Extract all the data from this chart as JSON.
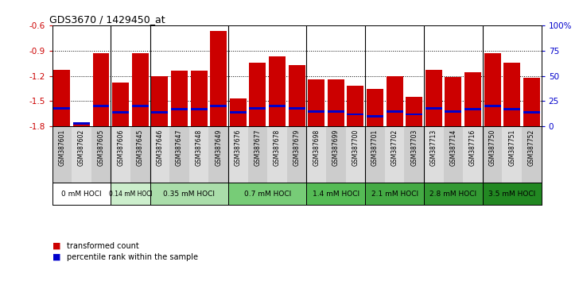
{
  "title": "GDS3670 / 1429450_at",
  "samples": [
    "GSM387601",
    "GSM387602",
    "GSM387605",
    "GSM387606",
    "GSM387645",
    "GSM387646",
    "GSM387647",
    "GSM387648",
    "GSM387649",
    "GSM387676",
    "GSM387677",
    "GSM387678",
    "GSM387679",
    "GSM387698",
    "GSM387699",
    "GSM387700",
    "GSM387701",
    "GSM387702",
    "GSM387703",
    "GSM387713",
    "GSM387714",
    "GSM387716",
    "GSM387750",
    "GSM387751",
    "GSM387752"
  ],
  "transformed_count": [
    -1.13,
    -1.77,
    -0.93,
    -1.28,
    -0.93,
    -1.2,
    -1.14,
    -1.14,
    -0.67,
    -1.47,
    -1.04,
    -0.97,
    -1.07,
    -1.24,
    -1.24,
    -1.32,
    -1.35,
    -1.2,
    -1.45,
    -1.13,
    -1.21,
    -1.16,
    -0.93,
    -1.04,
    -1.22
  ],
  "percentile_rank": [
    18,
    3,
    20,
    14,
    20,
    14,
    17,
    17,
    20,
    14,
    18,
    20,
    18,
    15,
    15,
    12,
    10,
    15,
    12,
    18,
    15,
    17,
    20,
    17,
    14
  ],
  "ylim_left": [
    -1.8,
    -0.6
  ],
  "ylim_right": [
    0,
    100
  ],
  "yticks_left": [
    -1.8,
    -1.5,
    -1.2,
    -0.9,
    -0.6
  ],
  "yticks_right": [
    0,
    25,
    50,
    75,
    100
  ],
  "ytick_right_labels": [
    "0",
    "25",
    "50",
    "75",
    "100%"
  ],
  "bar_color": "#cc0000",
  "percentile_color": "#0000cc",
  "dose_groups": [
    {
      "label": "0 mM HOCl",
      "start": 0,
      "end": 3,
      "color": "#ffffff"
    },
    {
      "label": "0.14 mM HOCl",
      "start": 3,
      "end": 5,
      "color": "#cceecc"
    },
    {
      "label": "0.35 mM HOCl",
      "start": 5,
      "end": 9,
      "color": "#aaddaa"
    },
    {
      "label": "0.7 mM HOCl",
      "start": 9,
      "end": 13,
      "color": "#77cc77"
    },
    {
      "label": "1.4 mM HOCl",
      "start": 13,
      "end": 16,
      "color": "#55bb55"
    },
    {
      "label": "2.1 mM HOCl",
      "start": 16,
      "end": 19,
      "color": "#44aa44"
    },
    {
      "label": "2.8 mM HOCl",
      "start": 19,
      "end": 22,
      "color": "#339933"
    },
    {
      "label": "3.5 mM HOCl",
      "start": 22,
      "end": 25,
      "color": "#228822"
    }
  ],
  "background_color": "#ffffff",
  "plot_bg_color": "#ffffff",
  "tick_label_color_left": "#cc0000",
  "tick_label_color_right": "#0000cc",
  "xtick_bg_even": "#cccccc",
  "xtick_bg_odd": "#dddddd"
}
